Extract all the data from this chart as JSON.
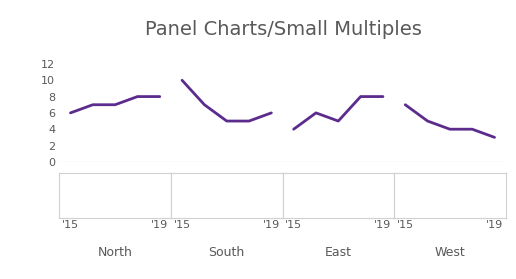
{
  "title": "Panel Charts/Small Multiples",
  "title_fontsize": 14,
  "title_color": "#595959",
  "line_color": "#5B2C8D",
  "line_width": 2.0,
  "background_color": "#FFFFFF",
  "ylim": [
    0,
    13
  ],
  "yticks": [
    0,
    2,
    4,
    6,
    8,
    10,
    12
  ],
  "panels": [
    {
      "label": "North",
      "x": [
        2015,
        2016,
        2017,
        2018,
        2019
      ],
      "y": [
        6,
        7,
        7,
        8,
        8
      ]
    },
    {
      "label": "South",
      "x": [
        2015,
        2016,
        2017,
        2018,
        2019
      ],
      "y": [
        10,
        7,
        5,
        5,
        6
      ]
    },
    {
      "label": "East",
      "x": [
        2015,
        2016,
        2017,
        2018,
        2019
      ],
      "y": [
        4,
        6,
        5,
        8,
        8
      ]
    },
    {
      "label": "West",
      "x": [
        2015,
        2016,
        2017,
        2018,
        2019
      ],
      "y": [
        7,
        5,
        4,
        4,
        3
      ]
    }
  ],
  "xtick_labels": [
    "'15",
    "'19"
  ],
  "xtick_positions": [
    2015,
    2019
  ],
  "tick_color": "#595959",
  "tick_fontsize": 8,
  "label_fontsize": 9,
  "label_color": "#595959",
  "spine_color": "#C0C0C0",
  "box_color": "#D0D0D0"
}
